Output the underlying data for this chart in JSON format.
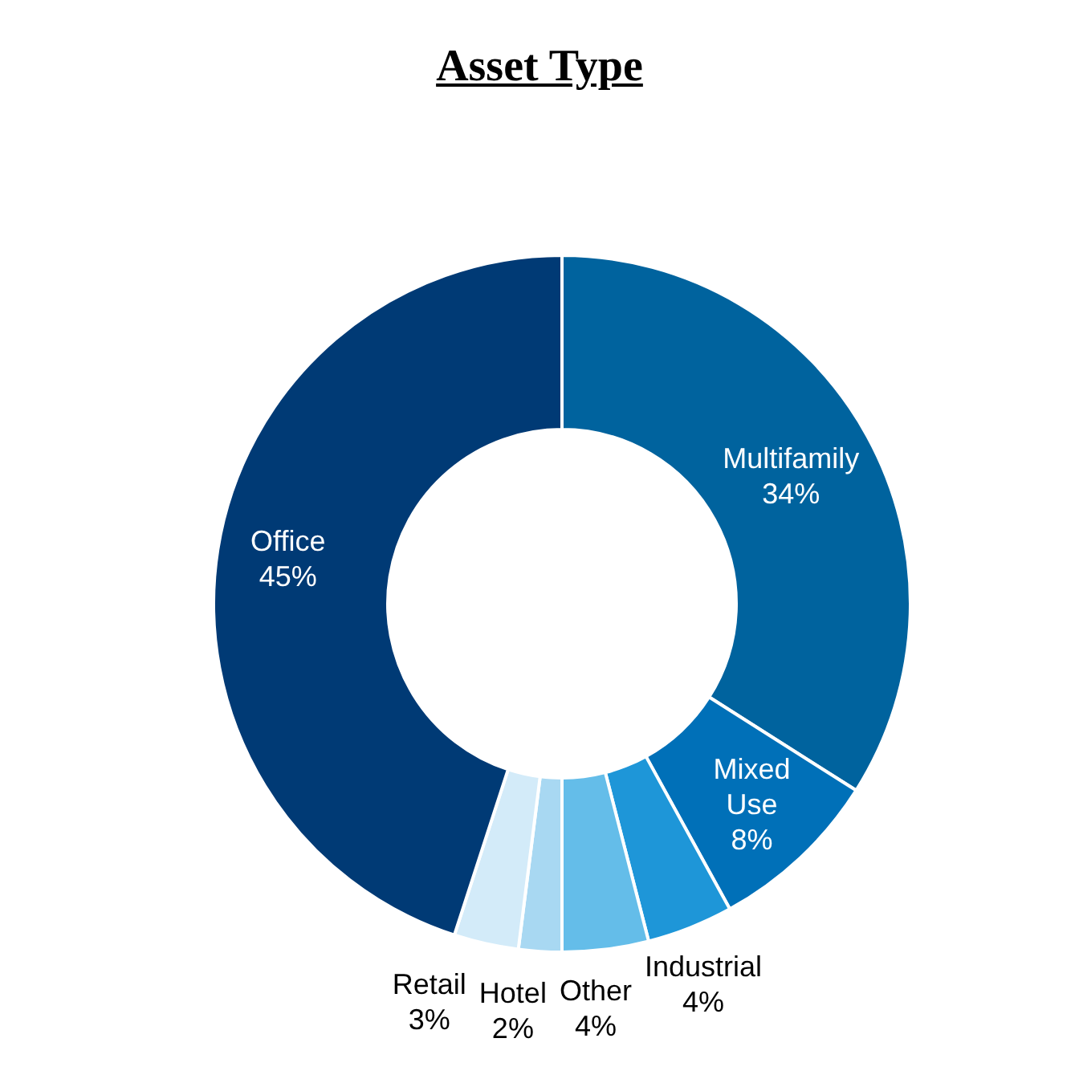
{
  "chart_data": {
    "type": "donut",
    "title": "Asset Type",
    "categories": [
      "Multifamily",
      "Mixed Use",
      "Industrial",
      "Other",
      "Hotel",
      "Retail",
      "Office"
    ],
    "values": [
      34,
      8,
      4,
      4,
      2,
      3,
      45
    ],
    "colors": [
      "#00639e",
      "#0070b8",
      "#1e96d8",
      "#64bde9",
      "#a8d8f2",
      "#d3ebf9",
      "#003a75"
    ],
    "value_labels": [
      "34%",
      "8%",
      "4%",
      "4%",
      "2%",
      "3%",
      "45%"
    ],
    "legend": false
  }
}
